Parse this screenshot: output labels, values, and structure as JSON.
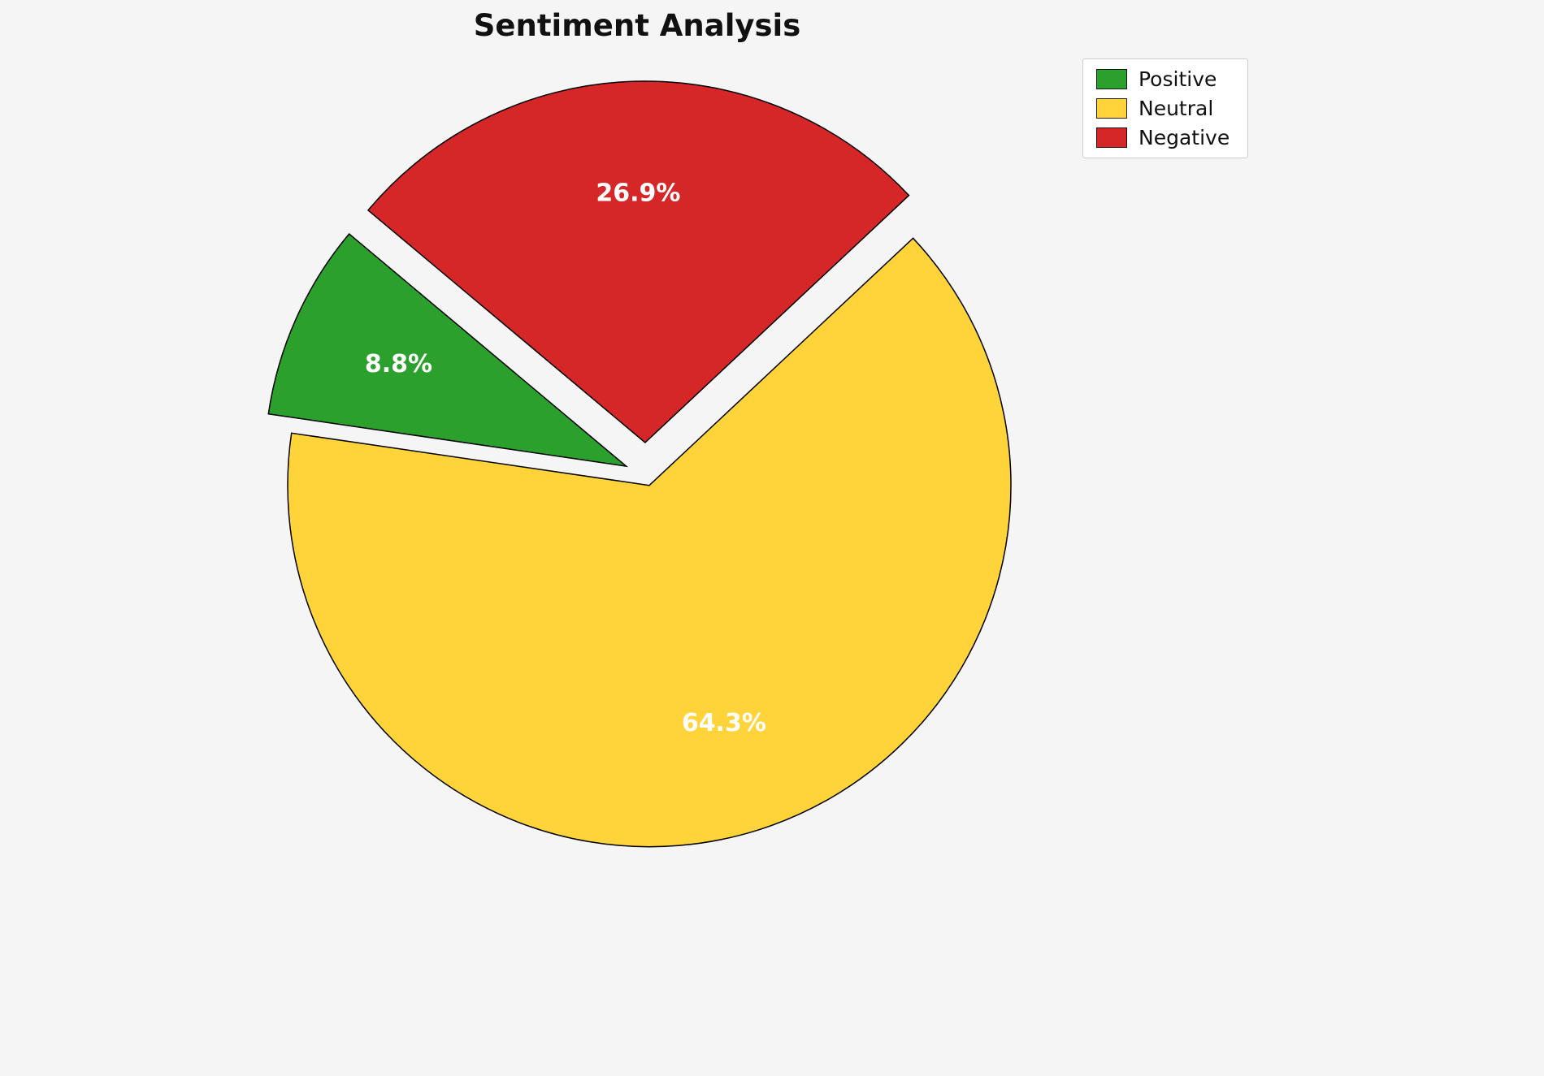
{
  "chart_data": {
    "type": "pie",
    "title": "Sentiment Analysis",
    "labels": [
      "Positive",
      "Neutral",
      "Negative"
    ],
    "values": [
      8.8,
      64.3,
      26.9
    ],
    "value_labels": [
      "8.8%",
      "64.3%",
      "26.9%"
    ],
    "colors": [
      "#2ca02c",
      "#ffd43b",
      "#d62728"
    ],
    "edge_color": "#000000",
    "label_text_color": "#ffffff",
    "background_color": "#f5f5f5",
    "startangle": 140,
    "direction": "counterclockwise",
    "explode": [
      0.06,
      0.03,
      0.09
    ],
    "pctdistance": 0.69,
    "legend": {
      "position": "upper right",
      "items": [
        "Positive",
        "Neutral",
        "Negative"
      ]
    }
  }
}
